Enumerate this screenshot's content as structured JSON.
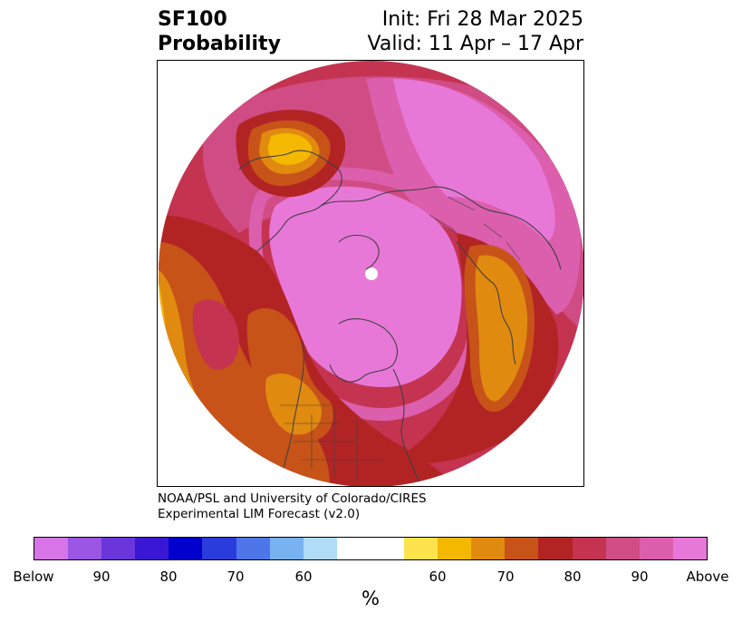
{
  "header": {
    "title_line1": "SF100",
    "title_line2": "Probability",
    "init": "Init: Fri 28 Mar 2025",
    "valid": "Valid: 11 Apr – 17 Apr"
  },
  "credit": {
    "line1": "NOAA/PSL and University of Colorado/CIRES",
    "line2": "Experimental LIM Forecast (v2.0)"
  },
  "colorbar": {
    "unit": "%",
    "colors": [
      "#d775e8",
      "#9a55e2",
      "#6b35dc",
      "#3a17d5",
      "#0000cd",
      "#2a3cdc",
      "#4f76e8",
      "#78b2f0",
      "#b0dcf8",
      "#ffffff",
      "#ffe34c",
      "#f5b800",
      "#e08a10",
      "#c75318",
      "#b22424",
      "#c43350",
      "#d04c84",
      "#dc5fae",
      "#e878d8"
    ],
    "tick_labels": [
      "Below",
      "90",
      "80",
      "70",
      "60",
      "60",
      "70",
      "80",
      "90",
      "Above"
    ]
  },
  "map": {
    "projection": "north-polar-stereographic",
    "palette": {
      "magenta_light": "#e878d8",
      "magenta": "#dc5fae",
      "pink": "#d04c84",
      "rose": "#c43350",
      "red": "#b22424",
      "rust": "#c75318",
      "orange": "#e08a10",
      "amber": "#f5b800",
      "yellow": "#ffe34c",
      "coastline": "#404040"
    }
  }
}
